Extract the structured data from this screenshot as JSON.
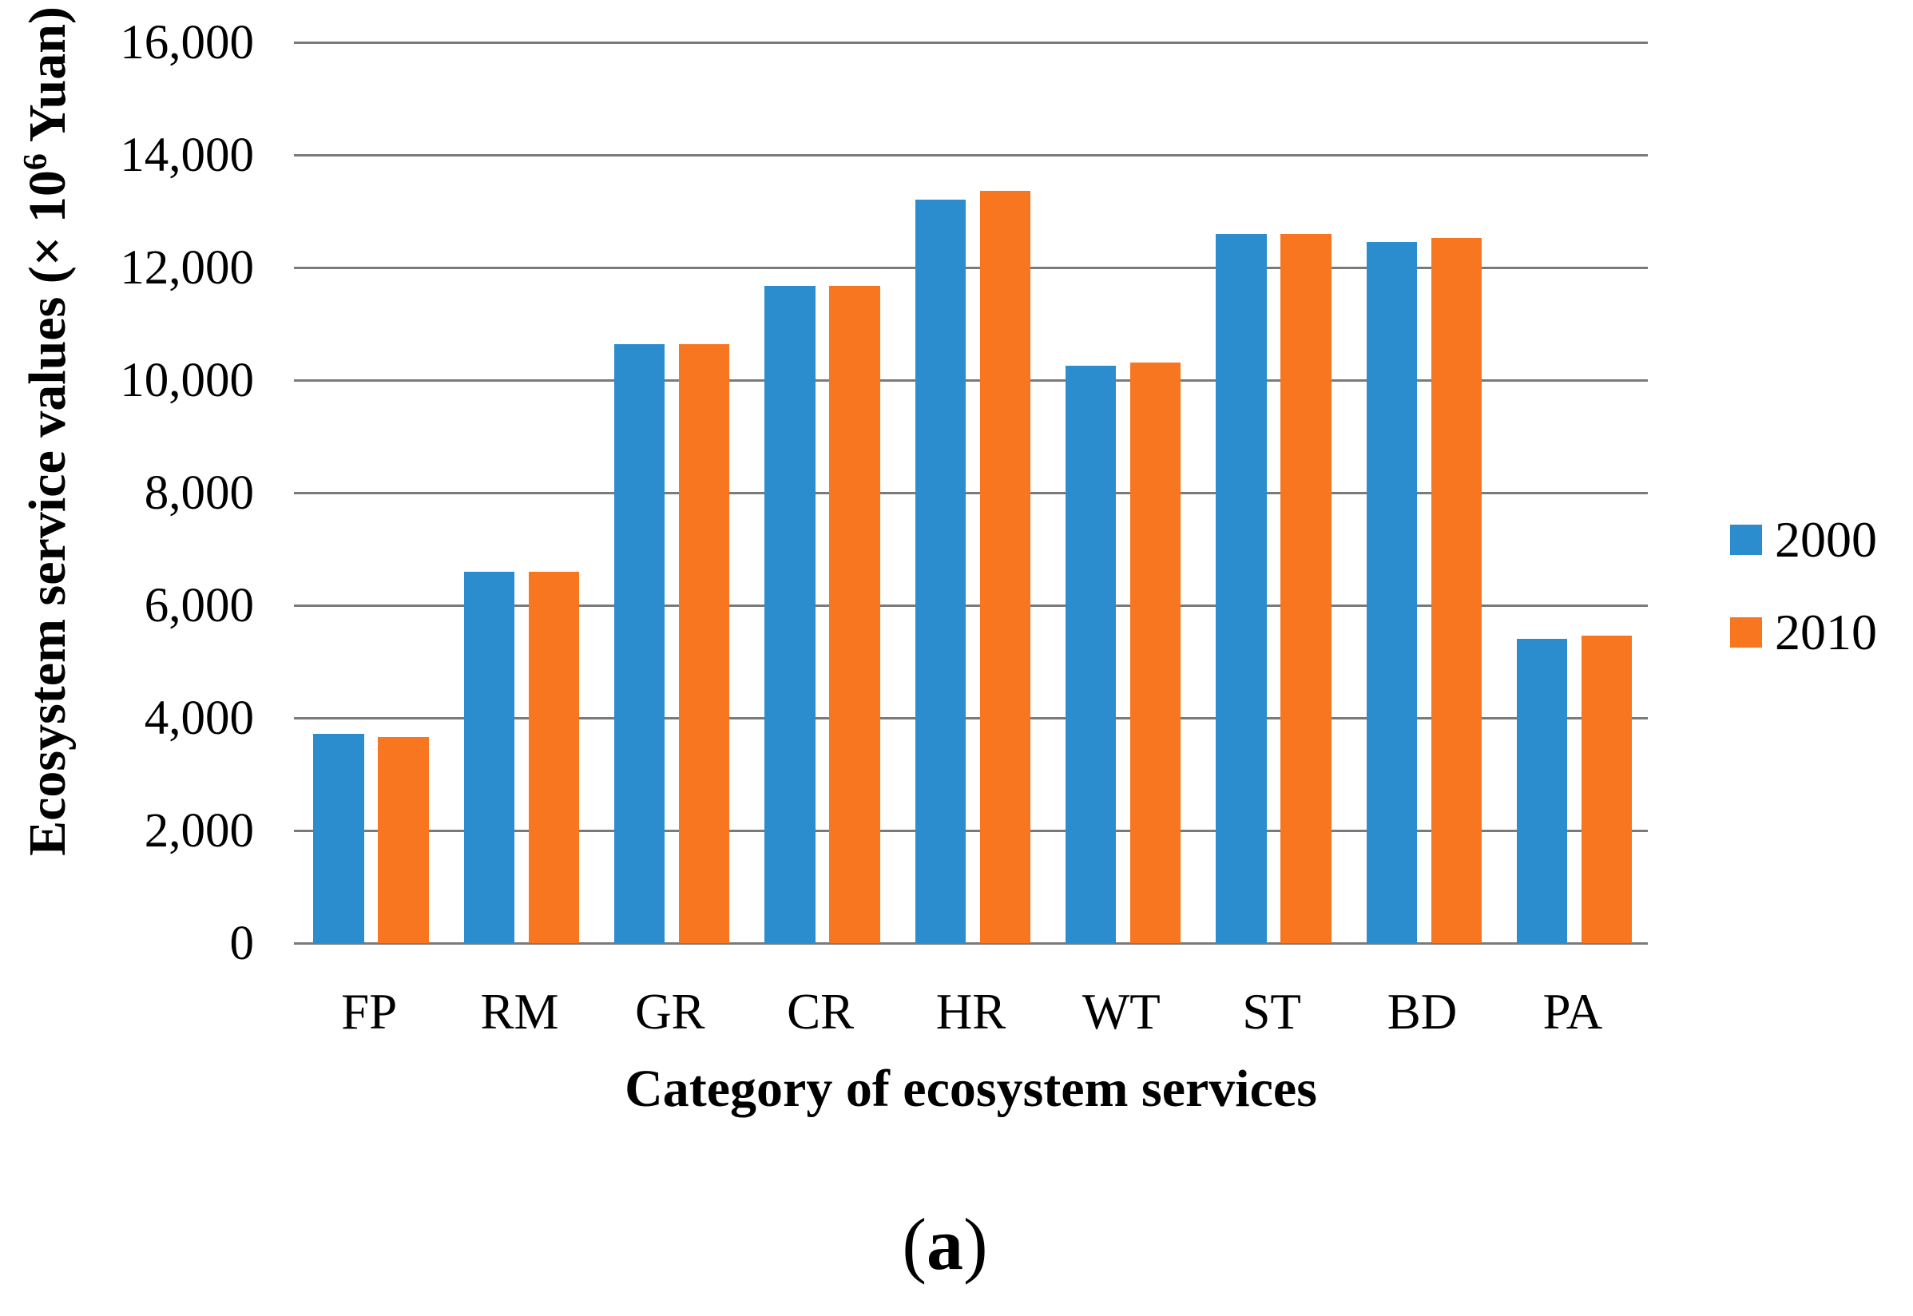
{
  "chart_data": {
    "type": "bar",
    "title": "",
    "categories": [
      "FP",
      "RM",
      "GR",
      "CR",
      "HR",
      "WT",
      "ST",
      "BD",
      "PA"
    ],
    "series": [
      {
        "name": "2000",
        "color": "#2b8dce",
        "values": [
          3710,
          6590,
          10640,
          11680,
          13210,
          10250,
          12600,
          12450,
          5400
        ]
      },
      {
        "name": "2010",
        "color": "#f8761f",
        "values": [
          3660,
          6590,
          10640,
          11680,
          13360,
          10310,
          12600,
          12520,
          5460
        ]
      }
    ],
    "xlabel": "Category of ecosystem services",
    "ylabel": "Ecosystem service values (× 10⁶ Yuan)",
    "ylabel_parts": {
      "prefix": "Ecosystem service values (× 10",
      "superscript": "6",
      "suffix": " Yuan)"
    },
    "ylim": [
      0,
      16000
    ],
    "ytick_step": 2000,
    "yticks_top_to_bottom": [
      "16,000",
      "14,000",
      "12,000",
      "10,000",
      "8,000",
      "6,000",
      "4,000",
      "2,000",
      "0"
    ],
    "grid": true,
    "gridline_color": "#7a7a7a",
    "legend_position": "right",
    "legend_entries": [
      "2000",
      "2010"
    ],
    "caption": {
      "open": "(",
      "label": "a",
      "close": ")"
    },
    "background": "#ffffff"
  }
}
